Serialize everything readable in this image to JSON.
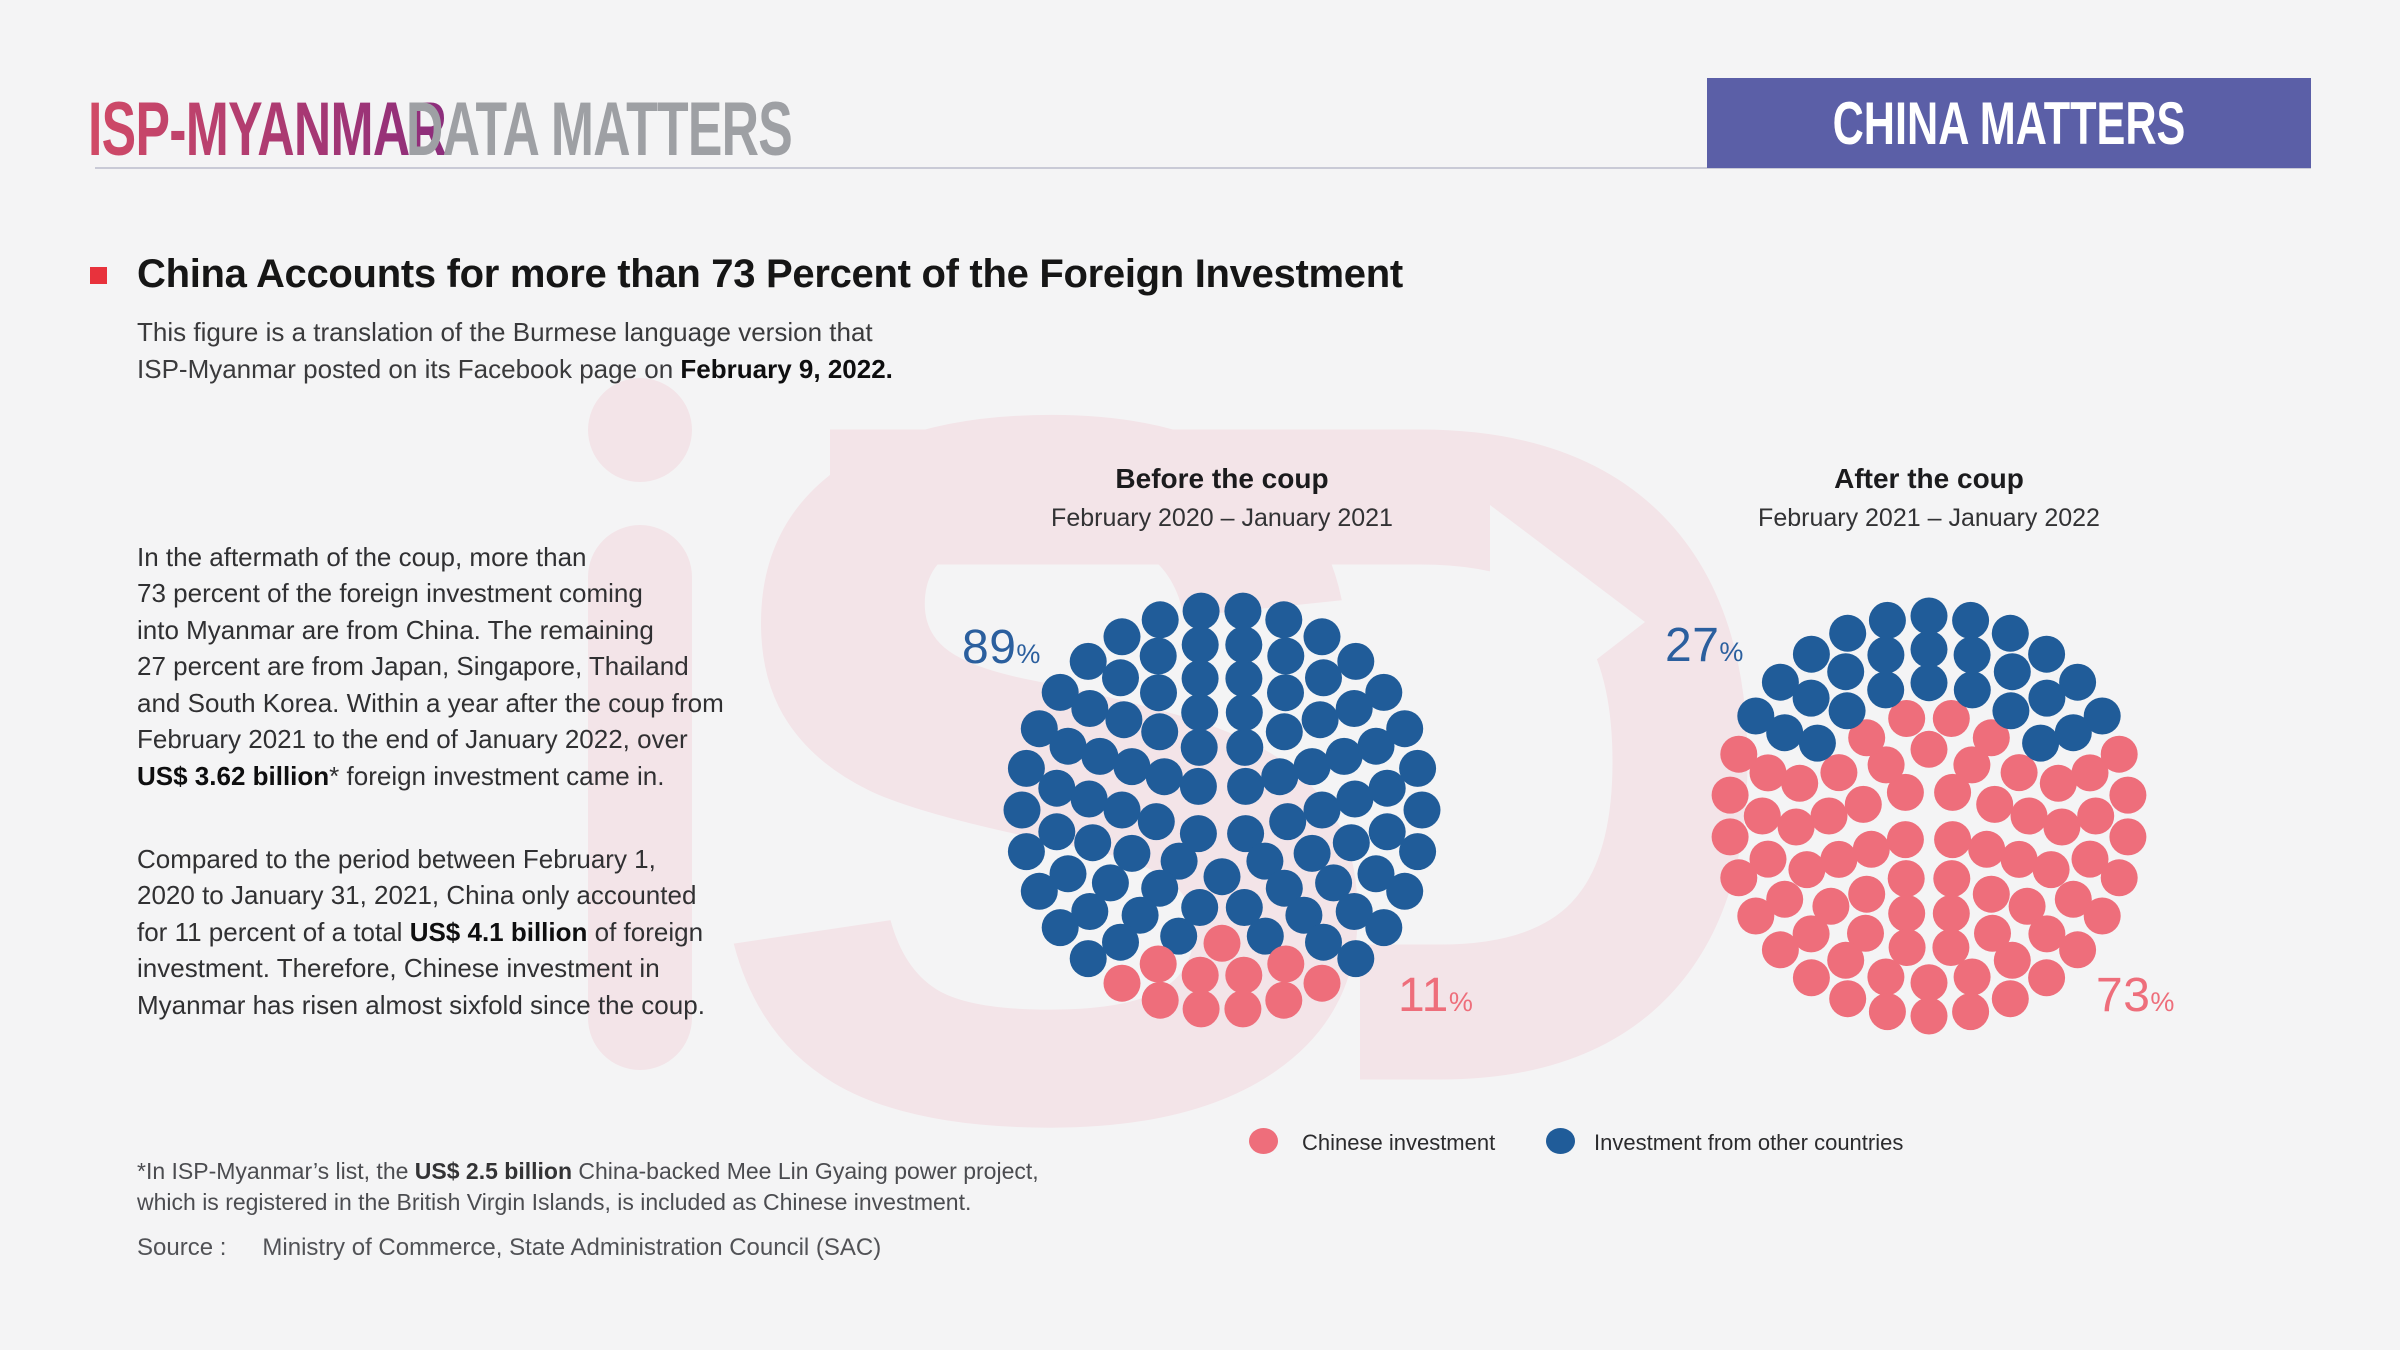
{
  "colors": {
    "background": "#F4F4F5",
    "banner_purple": "#5B5FA7",
    "accent_red": "#E8323C",
    "blue": "#205C99",
    "pink": "#EE6E7B",
    "label_blue": "#2B5F9E",
    "watermark_pink": "#F3E4E8",
    "divider": "#C9CAD6",
    "logo_secondary_gray": "#9EA0A4",
    "logo_gradient_start": "#D14A66",
    "logo_gradient_end": "#8C2D7C"
  },
  "header": {
    "logo_primary": "ISP-MYANMAR",
    "logo_secondary": "DATA MATTERS",
    "banner_label": "CHINA MATTERS"
  },
  "title_block": {
    "title": "China Accounts for more than 73 Percent of the Foreign Investment",
    "subtitle_rich": [
      {
        "text": "This figure is a translation of the Burmese language version that\nISP-Myanmar posted on its Facebook page on "
      },
      {
        "text": "February 9, 2022.",
        "bold": true
      }
    ]
  },
  "body_text": {
    "para1_rich": [
      {
        "text": "In the aftermath of the coup, more than\n73 percent of the foreign investment coming\ninto Myanmar are from China. The remaining\n27 percent are from Japan, Singapore, Thailand\nand South Korea. Within a year after the coup from\nFebruary 2021 to the end of January 2022, over\n"
      },
      {
        "text": "US$ 3.62 billion",
        "bold": true
      },
      {
        "text": "* foreign investment came in."
      }
    ],
    "para2_rich": [
      {
        "text": "Compared to the period between February 1,\n2020 to January 31, 2021, China only accounted\nfor 11 percent of a total "
      },
      {
        "text": "US$ 4.1 billion",
        "bold": true
      },
      {
        "text": " of foreign\ninvestment. Therefore, Chinese investment in\nMyanmar has risen almost sixfold since the coup."
      }
    ]
  },
  "chart_data": [
    {
      "type": "dot-matrix-pie",
      "title": "Before the coup",
      "subtitle": "February 2020 – January 2021",
      "unit": "%",
      "total_dots": 100,
      "rings_dot_counts": [
        4,
        9,
        14,
        19,
        24,
        30
      ],
      "series": [
        {
          "name": "Investment from other countries",
          "pct": 89,
          "color": "#205C99"
        },
        {
          "name": "Chinese investment",
          "pct": 11,
          "color": "#EE6E7B",
          "dots_per_ring": [
            0,
            0,
            0,
            1,
            4,
            6
          ],
          "anchor_deg": 90
        }
      ]
    },
    {
      "type": "dot-matrix-pie",
      "title": "After the coup",
      "subtitle": "February 2021 – January 2022",
      "unit": "%",
      "total_dots": 100,
      "rings_dot_counts": [
        4,
        9,
        14,
        19,
        24,
        30
      ],
      "series": [
        {
          "name": "Investment from other countries",
          "pct": 27,
          "color": "#205C99",
          "dots_per_ring": [
            0,
            0,
            0,
            7,
            9,
            11
          ],
          "anchor_deg": 270
        },
        {
          "name": "Chinese investment",
          "pct": 73,
          "color": "#EE6E7B"
        }
      ]
    }
  ],
  "legend": {
    "items": [
      {
        "label": "Chinese investment",
        "color": "#EE6E7B"
      },
      {
        "label": "Investment from other countries",
        "color": "#205C99"
      }
    ]
  },
  "footer": {
    "footnote_rich": [
      {
        "text": "*In ISP-Myanmar’s list, the "
      },
      {
        "text": "US$ 2.5 billion",
        "bold": true
      },
      {
        "text": " China-backed Mee Lin Gyaing power project,\nwhich is registered in the British Virgin Islands, is included as Chinese investment."
      }
    ],
    "source_label": "Source :",
    "source_text": "Ministry of Commerce, State Administration Council (SAC)"
  }
}
